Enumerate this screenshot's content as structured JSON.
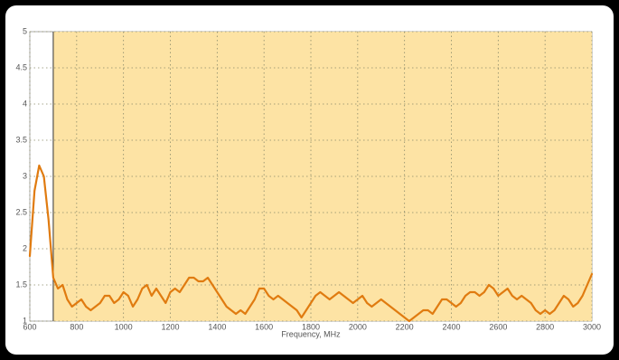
{
  "chart_data": {
    "type": "line",
    "x_label": "Frequency, MHz",
    "x": [
      600,
      620,
      640,
      660,
      680,
      700,
      720,
      740,
      760,
      780,
      800,
      820,
      840,
      860,
      880,
      900,
      920,
      940,
      960,
      980,
      1000,
      1020,
      1040,
      1060,
      1080,
      1100,
      1120,
      1140,
      1160,
      1180,
      1200,
      1220,
      1240,
      1260,
      1280,
      1300,
      1320,
      1340,
      1360,
      1380,
      1400,
      1420,
      1440,
      1460,
      1480,
      1500,
      1520,
      1540,
      1560,
      1580,
      1600,
      1620,
      1640,
      1660,
      1680,
      1700,
      1720,
      1740,
      1760,
      1780,
      1800,
      1820,
      1840,
      1860,
      1880,
      1900,
      1920,
      1940,
      1960,
      1980,
      2000,
      2020,
      2040,
      2060,
      2080,
      2100,
      2120,
      2140,
      2160,
      2180,
      2200,
      2220,
      2240,
      2260,
      2280,
      2300,
      2320,
      2340,
      2360,
      2380,
      2400,
      2420,
      2440,
      2460,
      2480,
      2500,
      2520,
      2540,
      2560,
      2580,
      2600,
      2620,
      2640,
      2660,
      2680,
      2700,
      2720,
      2740,
      2760,
      2780,
      2800,
      2820,
      2840,
      2860,
      2880,
      2900,
      2920,
      2940,
      2960,
      2980,
      3000
    ],
    "series": [
      {
        "color": "#e07b10",
        "values": [
          1.9,
          2.8,
          3.15,
          3.0,
          2.4,
          1.6,
          1.45,
          1.5,
          1.3,
          1.2,
          1.25,
          1.3,
          1.2,
          1.15,
          1.2,
          1.25,
          1.35,
          1.35,
          1.25,
          1.3,
          1.4,
          1.35,
          1.2,
          1.3,
          1.45,
          1.5,
          1.35,
          1.45,
          1.35,
          1.25,
          1.4,
          1.45,
          1.4,
          1.5,
          1.6,
          1.6,
          1.55,
          1.55,
          1.6,
          1.5,
          1.4,
          1.3,
          1.2,
          1.15,
          1.1,
          1.15,
          1.1,
          1.2,
          1.3,
          1.45,
          1.45,
          1.35,
          1.3,
          1.35,
          1.3,
          1.25,
          1.2,
          1.15,
          1.05,
          1.15,
          1.25,
          1.35,
          1.4,
          1.35,
          1.3,
          1.35,
          1.4,
          1.35,
          1.3,
          1.25,
          1.3,
          1.35,
          1.25,
          1.2,
          1.25,
          1.3,
          1.25,
          1.2,
          1.15,
          1.1,
          1.05,
          1.0,
          1.05,
          1.1,
          1.15,
          1.15,
          1.1,
          1.2,
          1.3,
          1.3,
          1.25,
          1.2,
          1.25,
          1.35,
          1.4,
          1.4,
          1.35,
          1.4,
          1.5,
          1.45,
          1.35,
          1.4,
          1.45,
          1.35,
          1.3,
          1.35,
          1.3,
          1.25,
          1.15,
          1.1,
          1.15,
          1.1,
          1.15,
          1.25,
          1.35,
          1.3,
          1.2,
          1.25,
          1.35,
          1.5,
          1.65
        ]
      }
    ],
    "xlim": [
      600,
      3000
    ],
    "ylim": [
      1,
      5
    ],
    "xticks": [
      600,
      800,
      1000,
      1200,
      1400,
      1600,
      1800,
      2000,
      2200,
      2400,
      2600,
      2800,
      3000
    ],
    "yticks": [
      1,
      1.5,
      2,
      2.5,
      3,
      3.5,
      4,
      4.5,
      5
    ],
    "shaded_xlim": [
      700,
      3000
    ],
    "shade_color": "#fde3a4",
    "grid": true
  }
}
